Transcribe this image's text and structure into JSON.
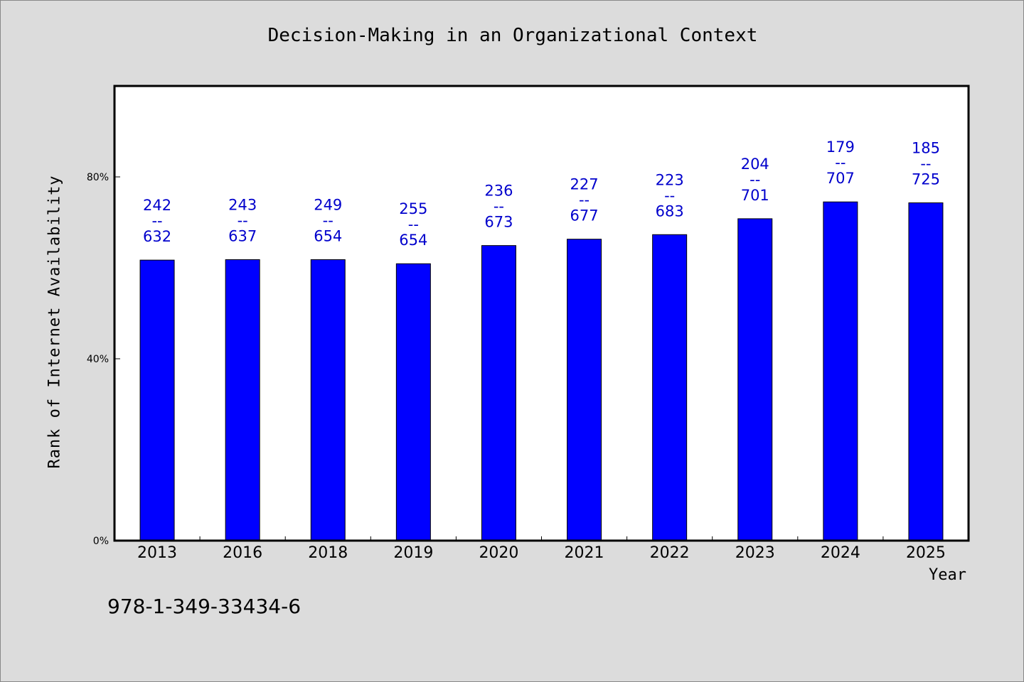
{
  "chart_data": {
    "type": "bar",
    "title": "Decision-Making in an Organizational Context",
    "xlabel": "Year",
    "ylabel": "Rank of Internet Availability",
    "categories": [
      "2013",
      "2016",
      "2018",
      "2019",
      "2020",
      "2021",
      "2022",
      "2023",
      "2024",
      "2025"
    ],
    "values": [
      61.7,
      61.8,
      61.8,
      60.9,
      64.9,
      66.3,
      67.3,
      70.8,
      74.5,
      74.3
    ],
    "value_unit": "%",
    "data_labels": [
      [
        "242",
        "--",
        "632"
      ],
      [
        "243",
        "--",
        "637"
      ],
      [
        "249",
        "--",
        "654"
      ],
      [
        "255",
        "--",
        "654"
      ],
      [
        "236",
        "--",
        "673"
      ],
      [
        "227",
        "--",
        "677"
      ],
      [
        "223",
        "--",
        "683"
      ],
      [
        "204",
        "--",
        "701"
      ],
      [
        "179",
        "--",
        "707"
      ],
      [
        "185",
        "--",
        "725"
      ]
    ],
    "yticks": [
      0,
      40,
      80
    ],
    "ytick_labels": [
      "0%",
      "40%",
      "80%"
    ],
    "ylim": [
      0,
      100
    ],
    "grid": false,
    "legend": "none",
    "colors": {
      "bar": "#0000ff",
      "bar_edge": "#000000",
      "data_label": "#0000cc",
      "plot_bg": "#ffffff",
      "page_bg": "#dcdcdc"
    }
  },
  "footnote": "978-1-349-33434-6"
}
